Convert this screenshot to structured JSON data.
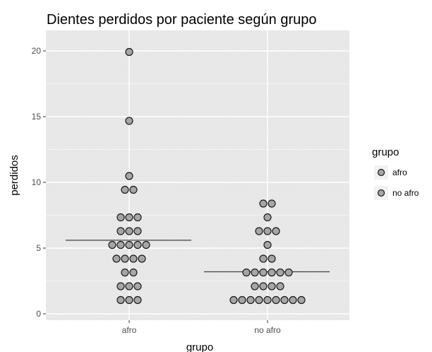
{
  "chart_data": {
    "type": "scatter",
    "title": "Dientes perdidos por paciente según grupo",
    "xlabel": "grupo",
    "ylabel": "perdidos",
    "categories": [
      "afro",
      "no afro"
    ],
    "ylim": [
      0,
      20
    ],
    "yticks": [
      0,
      5,
      10,
      15,
      20
    ],
    "grid": true,
    "legend": {
      "title": "grupo",
      "position": "right",
      "entries": [
        "afro",
        "no afro"
      ]
    },
    "series": [
      {
        "name": "afro",
        "color": "#a6a6a6",
        "values": [
          19,
          14,
          10,
          9,
          9,
          7,
          7,
          7,
          6,
          6,
          6,
          5,
          5,
          5,
          5,
          5,
          4,
          4,
          4,
          4,
          3,
          3,
          2,
          2,
          2,
          1,
          1,
          1
        ],
        "median_line": 5.6
      },
      {
        "name": "no afro",
        "color": "#a6a6a6",
        "values": [
          8,
          8,
          7,
          6,
          6,
          6,
          5,
          4,
          4,
          3,
          3,
          3,
          3,
          3,
          3,
          2,
          2,
          2,
          2,
          1,
          1,
          1,
          1,
          1,
          1,
          1,
          1,
          1
        ],
        "median_line": 3.2
      }
    ]
  }
}
